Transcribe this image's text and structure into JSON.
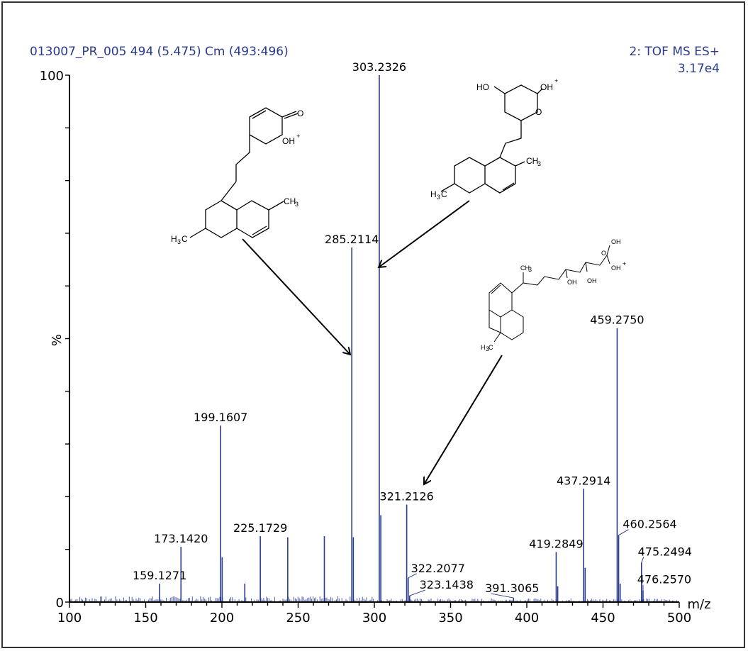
{
  "header": {
    "sample": "013007_PR_005 494 (5.475) Cm (493:496)",
    "function": "2: TOF MS ES+",
    "intensity": "3.17e4"
  },
  "chart_data": {
    "type": "bar",
    "xlabel": "m/z",
    "ylabel": "%",
    "xlim": [
      100,
      500
    ],
    "ylim": [
      0,
      100
    ],
    "xticks": [
      100,
      150,
      200,
      250,
      300,
      350,
      400,
      450,
      500
    ],
    "yticks": [
      0,
      100
    ],
    "peaks": [
      {
        "mz": 159.1271,
        "intensity": 3.5,
        "label": "159.1271"
      },
      {
        "mz": 173.142,
        "intensity": 10.5,
        "label": "173.1420"
      },
      {
        "mz": 199.1607,
        "intensity": 33.5,
        "label": "199.1607"
      },
      {
        "mz": 200.16,
        "intensity": 8.5
      },
      {
        "mz": 215.0,
        "intensity": 3.5
      },
      {
        "mz": 225.1729,
        "intensity": 12.5,
        "label": "225.1729"
      },
      {
        "mz": 243.18,
        "intensity": 12.3
      },
      {
        "mz": 267.2,
        "intensity": 12.5
      },
      {
        "mz": 285.2114,
        "intensity": 67.3,
        "label": "285.2114"
      },
      {
        "mz": 286.21,
        "intensity": 12.3
      },
      {
        "mz": 303.2326,
        "intensity": 100,
        "label": "303.2326"
      },
      {
        "mz": 304.23,
        "intensity": 16.5
      },
      {
        "mz": 321.2126,
        "intensity": 18.5,
        "label": "321.2126"
      },
      {
        "mz": 322.2077,
        "intensity": 4.6,
        "label": "322.2077"
      },
      {
        "mz": 323.1438,
        "intensity": 1.2,
        "label": "323.1438"
      },
      {
        "mz": 391.3065,
        "intensity": 0.8,
        "label": "391.3065"
      },
      {
        "mz": 419.2849,
        "intensity": 9.5,
        "label": "419.2849"
      },
      {
        "mz": 420.29,
        "intensity": 3.0
      },
      {
        "mz": 437.2914,
        "intensity": 21.5,
        "label": "437.2914"
      },
      {
        "mz": 438.29,
        "intensity": 6.5
      },
      {
        "mz": 459.275,
        "intensity": 52.0,
        "label": "459.2750"
      },
      {
        "mz": 460.2564,
        "intensity": 12.7,
        "label": "460.2564"
      },
      {
        "mz": 461.26,
        "intensity": 3.5
      },
      {
        "mz": 475.2494,
        "intensity": 7.5,
        "label": "475.2494"
      },
      {
        "mz": 476.257,
        "intensity": 2.2,
        "label": "476.2570"
      }
    ]
  },
  "structures": {
    "s1": {
      "o_top": "O",
      "oh_plus": "OH",
      "plus": "+",
      "ch3": "CH",
      "ch3_sub": "3",
      "h3c": "H",
      "h3c_sub": "3",
      "h3c_c": "C"
    },
    "s2": {
      "ho": "HO",
      "oh_plus": "OH",
      "plus": "+",
      "o_ring": "O",
      "ch3": "CH",
      "ch3_sub": "3",
      "h3c": "H",
      "h3c_sub": "3",
      "h3c_c": "C"
    },
    "s3": {
      "oh_top": "OH",
      "oh_plus": "OH",
      "plus": "+",
      "oh_a": "OH",
      "oh_b": "OH",
      "o_acid": "O",
      "ch3": "CH",
      "ch3_sub": "3",
      "h3c": "H",
      "h3c_sub": "3",
      "h3c_c": "C"
    }
  },
  "colors": {
    "axis": "#000000",
    "peaks": "#2a3a8c",
    "header": "#2a3a8c"
  }
}
